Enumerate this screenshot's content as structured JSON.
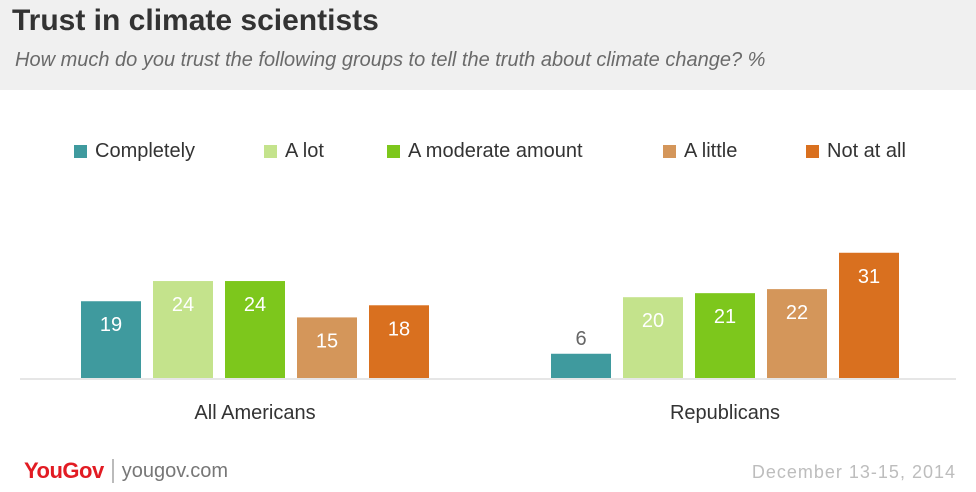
{
  "header": {
    "title": "Trust in climate scientists",
    "subtitle": "How much do you trust the following groups to tell the truth about climate change? %"
  },
  "legend": [
    {
      "label": "Completely",
      "color": "#3f9a9e"
    },
    {
      "label": "A lot",
      "color": "#c4e38c"
    },
    {
      "label": "A moderate amount",
      "color": "#7dc71c"
    },
    {
      "label": "A little",
      "color": "#d4965a"
    },
    {
      "label": "Not at all",
      "color": "#d9701f"
    }
  ],
  "chart_data": {
    "type": "bar",
    "categories": [
      "All Americans",
      "Republicans"
    ],
    "series": [
      {
        "name": "Completely",
        "values": [
          19,
          6
        ],
        "color": "#3f9a9e"
      },
      {
        "name": "A lot",
        "values": [
          24,
          20
        ],
        "color": "#c4e38c"
      },
      {
        "name": "A moderate amount",
        "values": [
          24,
          21
        ],
        "color": "#7dc71c"
      },
      {
        "name": "A little",
        "values": [
          15,
          22
        ],
        "color": "#d4965a"
      },
      {
        "name": "Not at all",
        "values": [
          18,
          31
        ],
        "color": "#d9701f"
      }
    ],
    "ylim": [
      0,
      31
    ],
    "grid": false,
    "legend_position": "top"
  },
  "footer": {
    "logo": "YouGov",
    "site": "yougov.com",
    "date": "December 13-15, 2014"
  }
}
